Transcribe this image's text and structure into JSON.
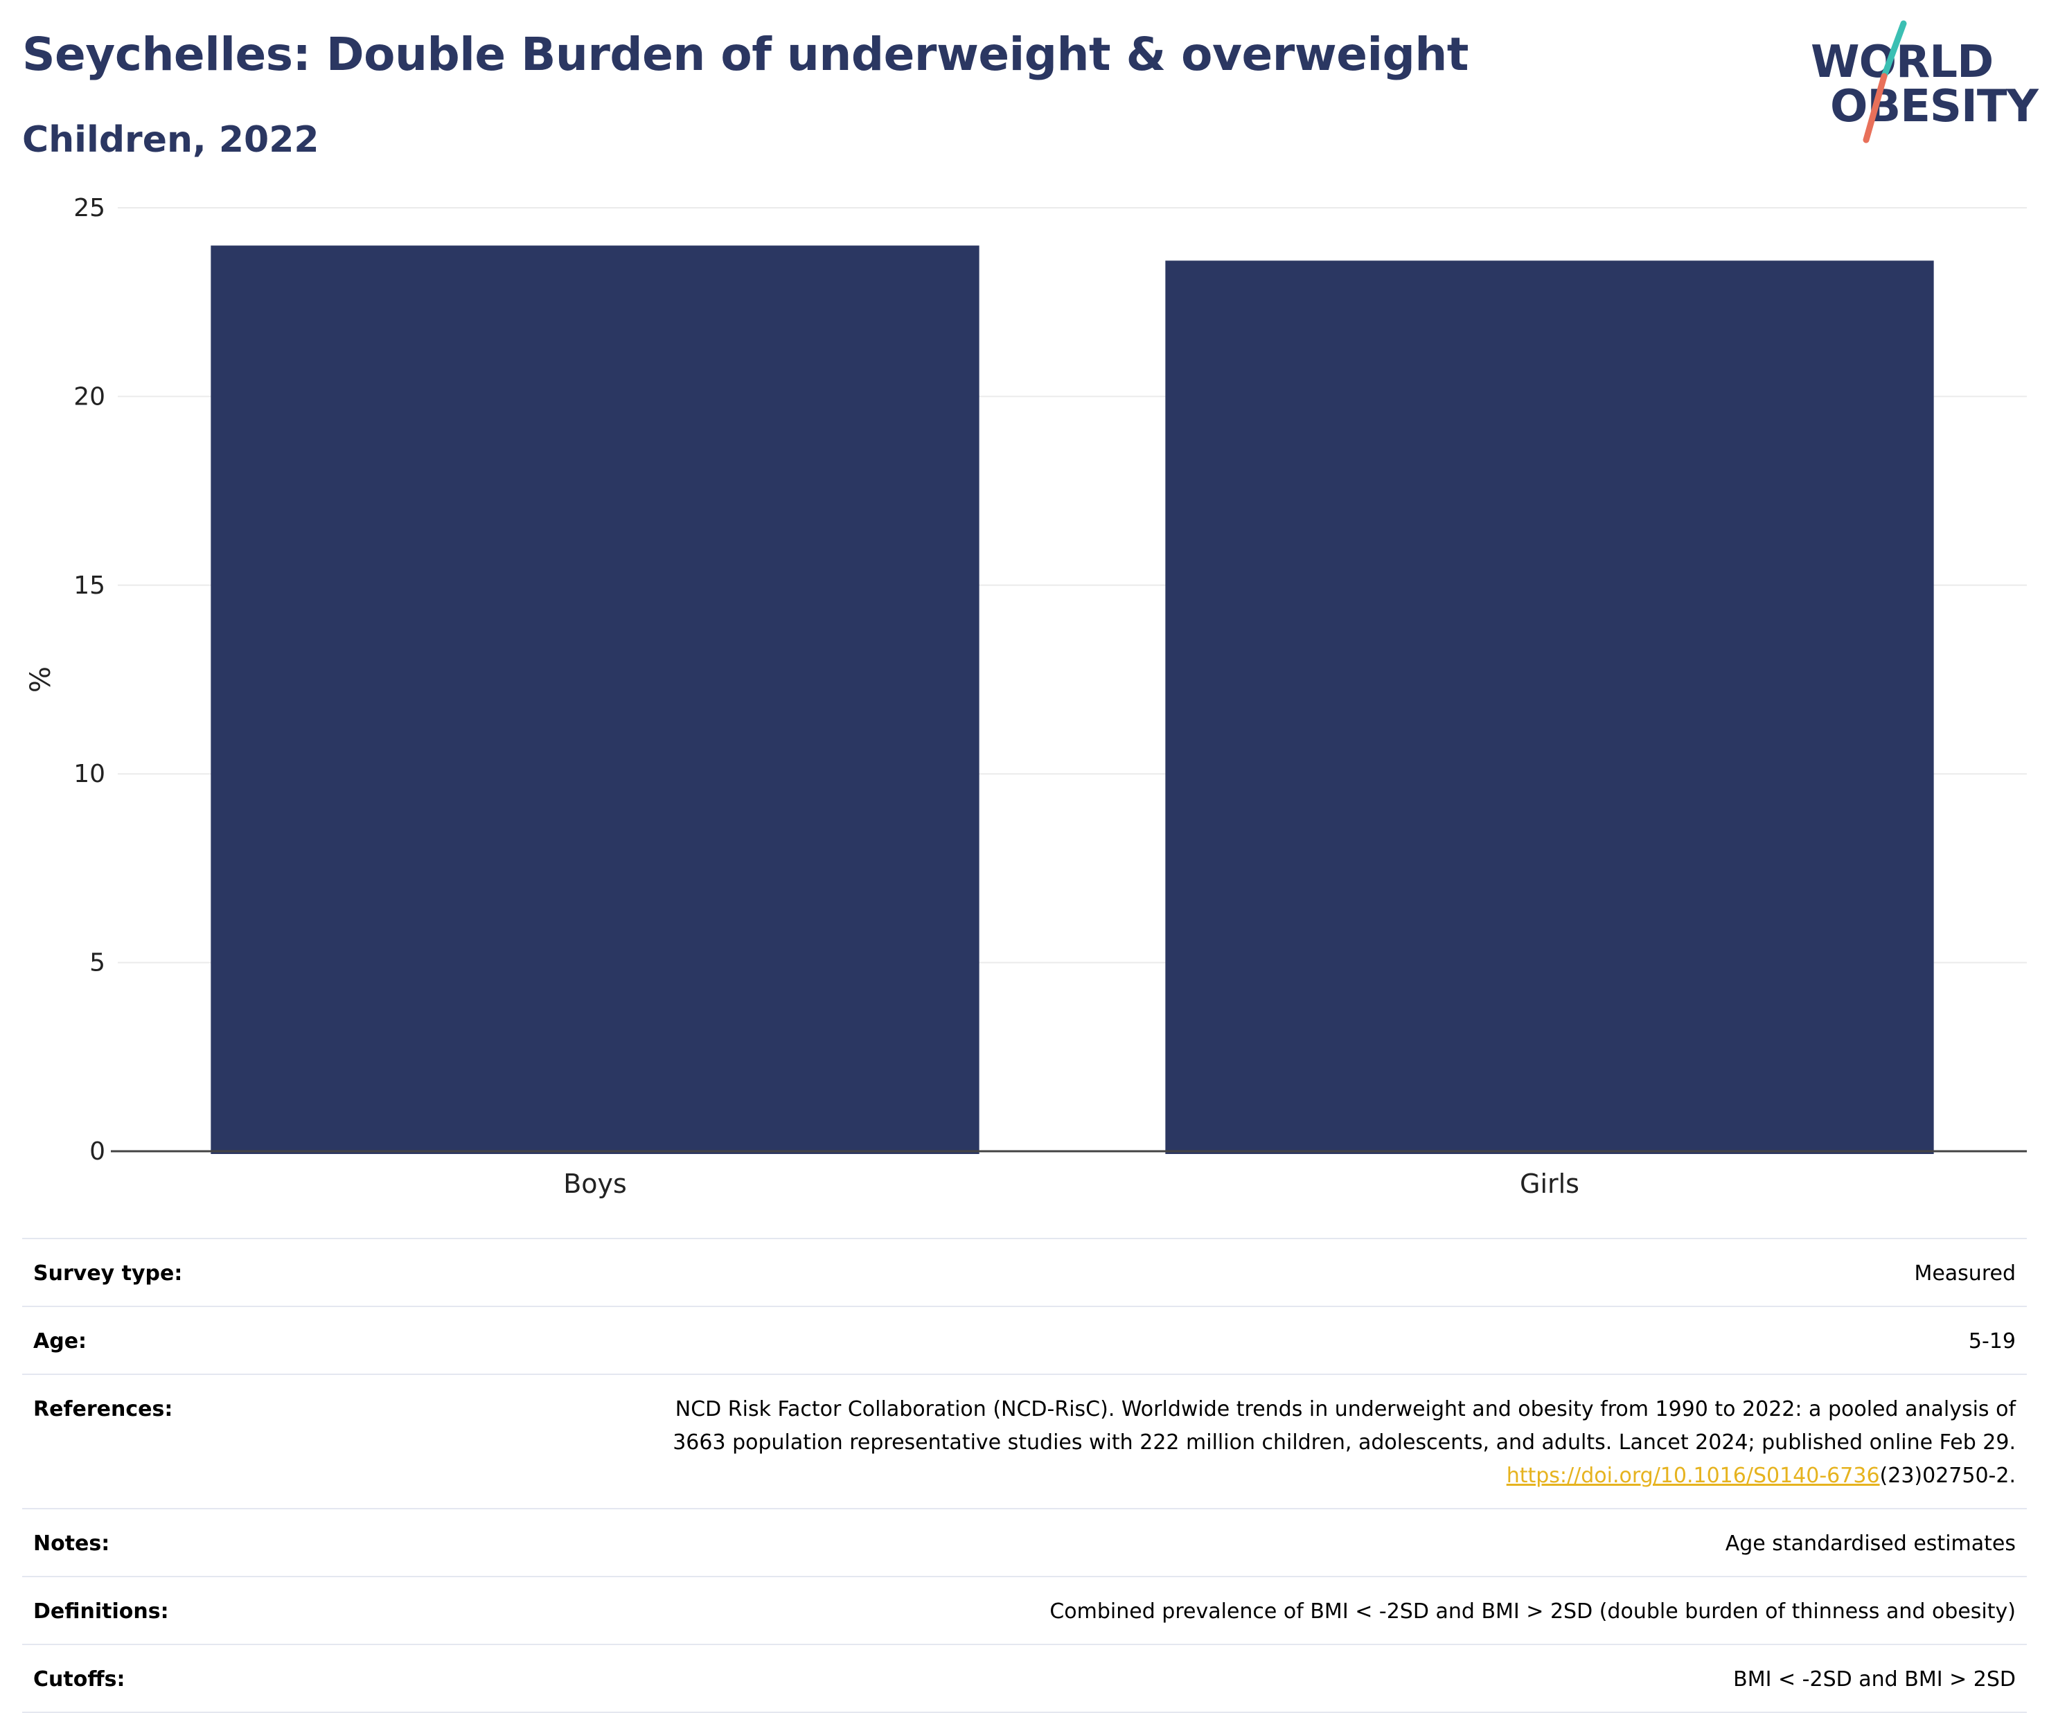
{
  "header": {
    "title": "Seychelles: Double Burden of underweight & overweight",
    "subtitle": "Children, 2022"
  },
  "logo": {
    "line1": "WORLD",
    "line2": "OBESITY",
    "colors": {
      "text": "#2b3762",
      "slash_top": "#3bbfb3",
      "slash_bottom": "#e8705a"
    }
  },
  "chart_data": {
    "type": "bar",
    "categories": [
      "Boys",
      "Girls"
    ],
    "values": [
      24.0,
      23.6
    ],
    "ylabel": "%",
    "ylim": [
      0,
      25
    ],
    "yticks": [
      0,
      5,
      10,
      15,
      20,
      25
    ],
    "grid": true,
    "bar_color": "#2b3762"
  },
  "info": {
    "survey_type": {
      "label": "Survey type:",
      "value": "Measured"
    },
    "age": {
      "label": "Age:",
      "value": "5-19"
    },
    "references": {
      "label": "References:",
      "line1": "NCD Risk Factor Collaboration (NCD-RisC). Worldwide trends in underweight and obesity from 1990 to 2022: a pooled analysis of",
      "line2": "3663 population representative studies with 222 million children, adolescents, and adults. Lancet 2024; published online Feb 29.",
      "link": "https://doi.org/10.1016/S0140-6736",
      "suffix": "(23)02750-2."
    },
    "notes": {
      "label": "Notes:",
      "value": "Age standardised estimates"
    },
    "definitions": {
      "label": "Definitions:",
      "value": "Combined prevalence of BMI < -2SD and BMI > 2SD (double burden of thinness and obesity)"
    },
    "cutoffs": {
      "label": "Cutoffs:",
      "value": "BMI < -2SD and BMI > 2SD"
    }
  }
}
